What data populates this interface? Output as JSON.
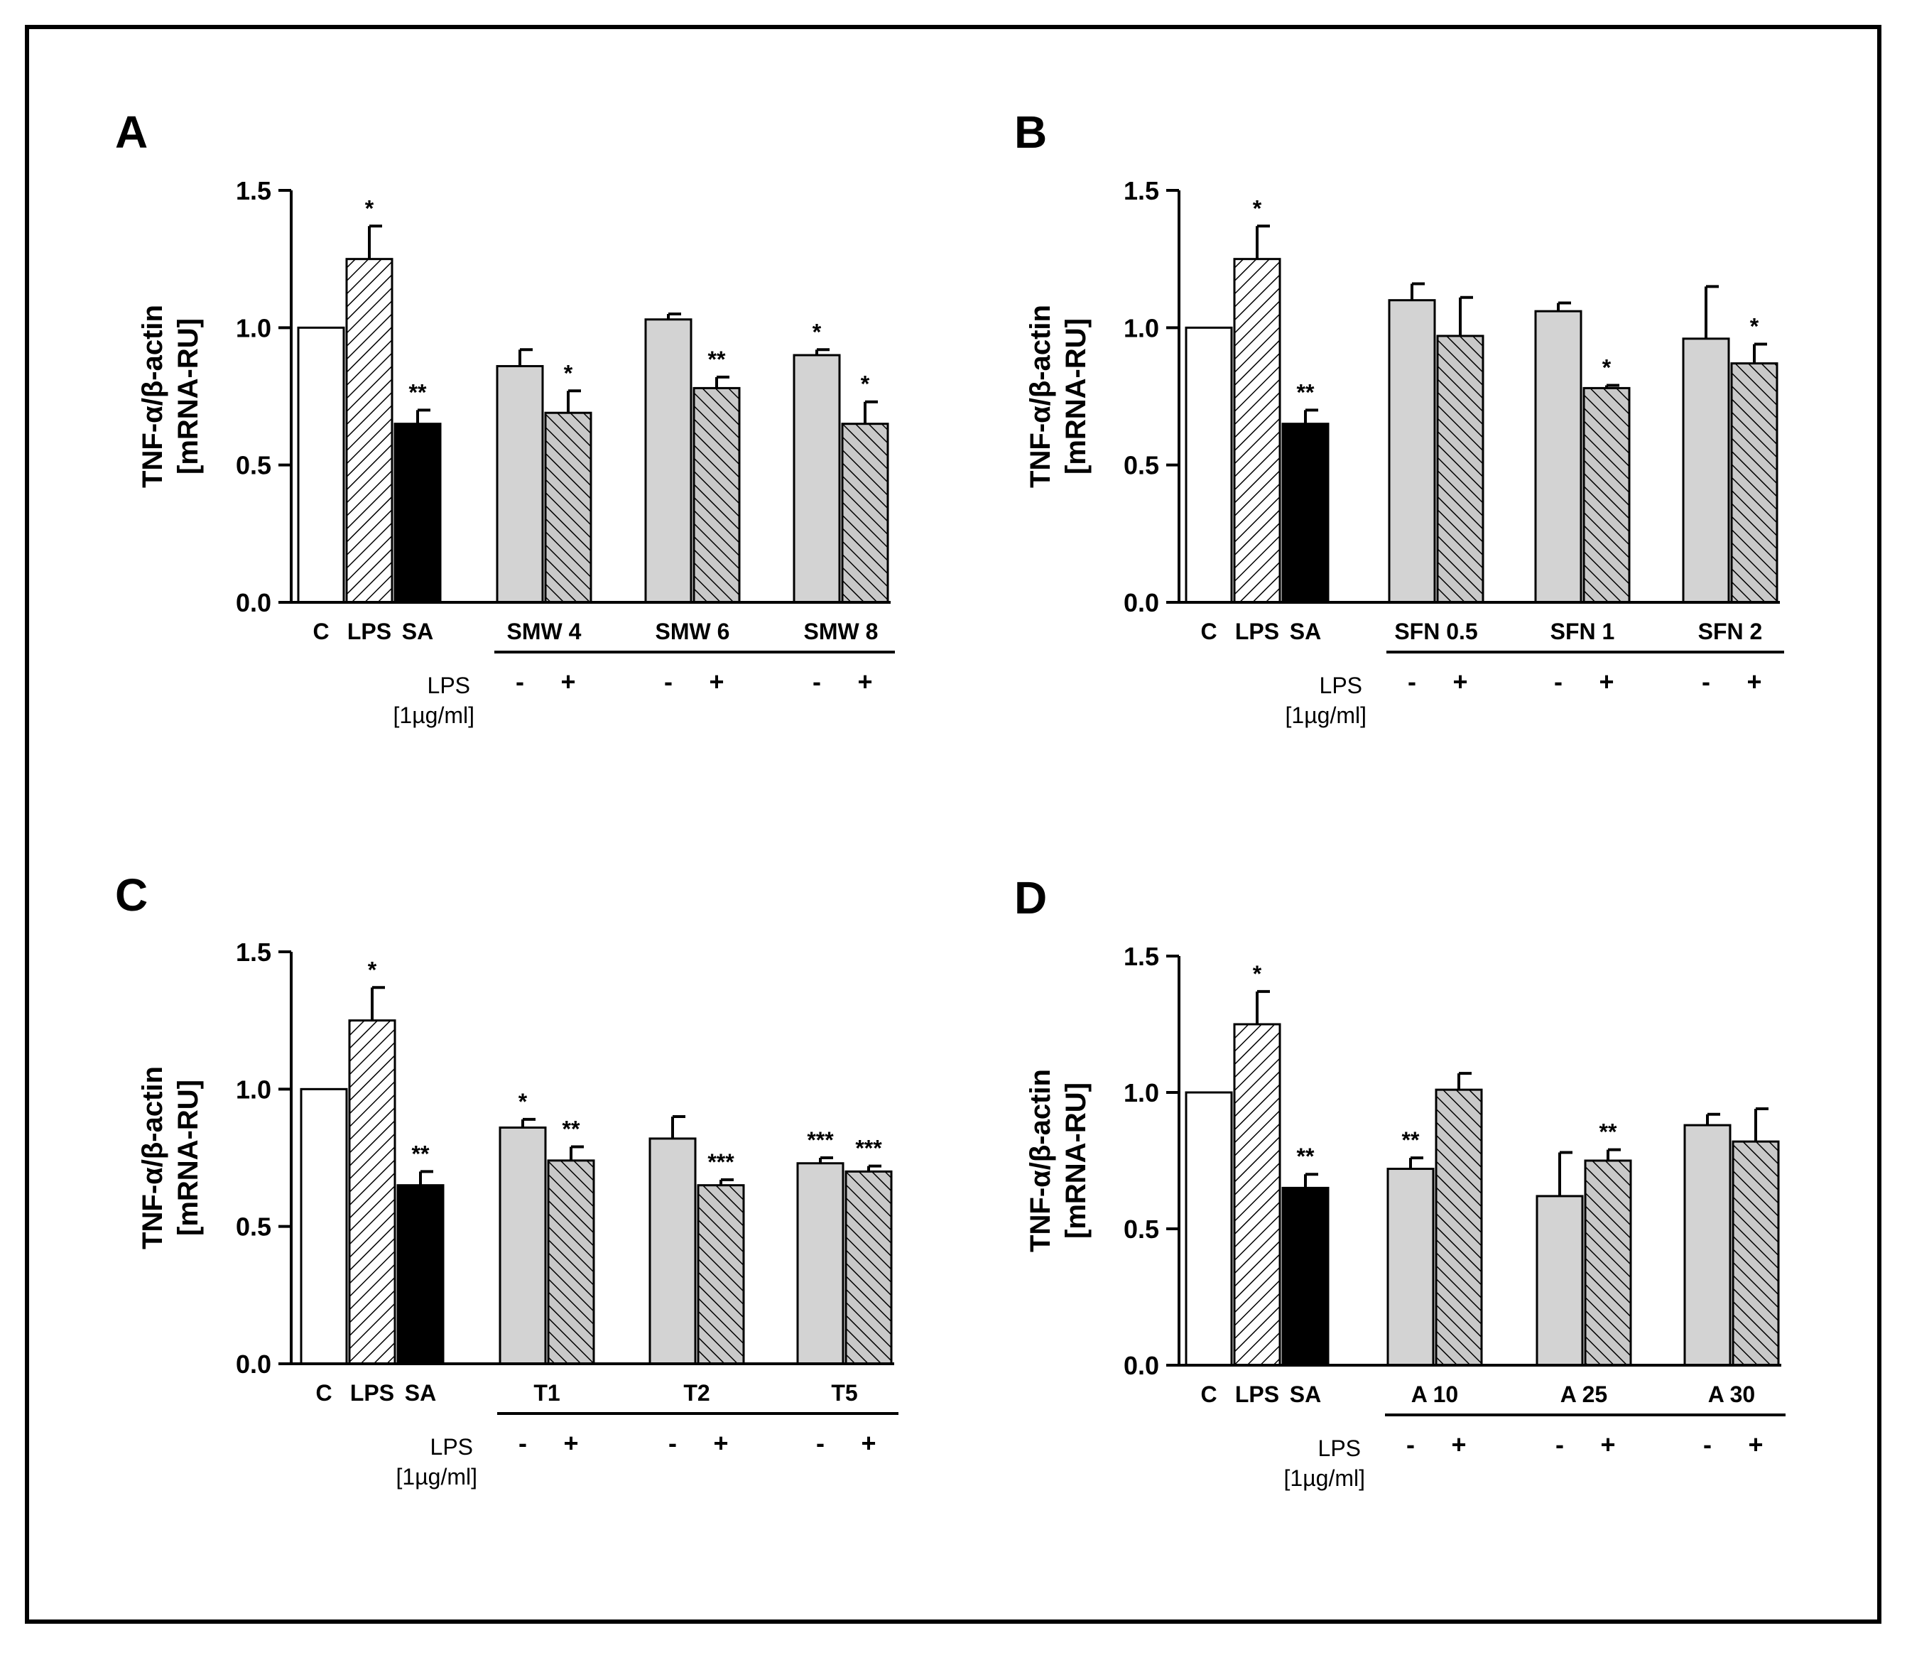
{
  "chart_data": [
    {
      "panel": "A",
      "type": "bar",
      "ylabel_line1": "TNF-α/β-actin",
      "ylabel_line2": "[mRNA-RU]",
      "ylim": [
        0,
        1.5
      ],
      "yticks": [
        "0.0",
        "0.5",
        "1.0",
        "1.5"
      ],
      "controls": [
        {
          "label": "C",
          "value": 1.0,
          "error": 0,
          "sig": "",
          "style": "white"
        },
        {
          "label": "LPS",
          "value": 1.25,
          "error": 0.12,
          "sig": "*",
          "style": "hatch"
        },
        {
          "label": "SA",
          "value": 0.65,
          "error": 0.05,
          "sig": "**",
          "style": "black"
        }
      ],
      "groups": [
        {
          "label": "SMW 4",
          "minus": {
            "value": 0.86,
            "error": 0.06,
            "sig": ""
          },
          "plus": {
            "value": 0.69,
            "error": 0.08,
            "sig": "*"
          }
        },
        {
          "label": "SMW 6",
          "minus": {
            "value": 1.03,
            "error": 0.02,
            "sig": ""
          },
          "plus": {
            "value": 0.78,
            "error": 0.04,
            "sig": "**"
          }
        },
        {
          "label": "SMW 8",
          "minus": {
            "value": 0.9,
            "error": 0.02,
            "sig": "*"
          },
          "plus": {
            "value": 0.65,
            "error": 0.08,
            "sig": "*"
          }
        }
      ],
      "lps_label": "LPS",
      "lps_unit": "[1µg/ml]",
      "minus_sign": "-",
      "plus_sign": "+"
    },
    {
      "panel": "B",
      "type": "bar",
      "ylabel_line1": "TNF-α/β-actin",
      "ylabel_line2": "[mRNA-RU]",
      "ylim": [
        0,
        1.5
      ],
      "yticks": [
        "0.0",
        "0.5",
        "1.0",
        "1.5"
      ],
      "controls": [
        {
          "label": "C",
          "value": 1.0,
          "error": 0,
          "sig": "",
          "style": "white"
        },
        {
          "label": "LPS",
          "value": 1.25,
          "error": 0.12,
          "sig": "*",
          "style": "hatch"
        },
        {
          "label": "SA",
          "value": 0.65,
          "error": 0.05,
          "sig": "**",
          "style": "black"
        }
      ],
      "groups": [
        {
          "label": "SFN 0.5",
          "minus": {
            "value": 1.1,
            "error": 0.06,
            "sig": ""
          },
          "plus": {
            "value": 0.97,
            "error": 0.14,
            "sig": ""
          }
        },
        {
          "label": "SFN 1",
          "minus": {
            "value": 1.06,
            "error": 0.03,
            "sig": ""
          },
          "plus": {
            "value": 0.78,
            "error": 0.01,
            "sig": "*"
          }
        },
        {
          "label": "SFN 2",
          "minus": {
            "value": 0.96,
            "error": 0.19,
            "sig": ""
          },
          "plus": {
            "value": 0.87,
            "error": 0.07,
            "sig": "*"
          }
        }
      ],
      "lps_label": "LPS",
      "lps_unit": "[1µg/ml]",
      "minus_sign": "-",
      "plus_sign": "+"
    },
    {
      "panel": "C",
      "type": "bar",
      "ylabel_line1": "TNF-α/β-actin",
      "ylabel_line2": "[mRNA-RU]",
      "ylim": [
        0,
        1.5
      ],
      "yticks": [
        "0.0",
        "0.5",
        "1.0",
        "1.5"
      ],
      "controls": [
        {
          "label": "C",
          "value": 1.0,
          "error": 0,
          "sig": "",
          "style": "white"
        },
        {
          "label": "LPS",
          "value": 1.25,
          "error": 0.12,
          "sig": "*",
          "style": "hatch"
        },
        {
          "label": "SA",
          "value": 0.65,
          "error": 0.05,
          "sig": "**",
          "style": "black"
        }
      ],
      "groups": [
        {
          "label": "T1",
          "minus": {
            "value": 0.86,
            "error": 0.03,
            "sig": "*"
          },
          "plus": {
            "value": 0.74,
            "error": 0.05,
            "sig": "**"
          }
        },
        {
          "label": "T2",
          "minus": {
            "value": 0.82,
            "error": 0.08,
            "sig": ""
          },
          "plus": {
            "value": 0.65,
            "error": 0.02,
            "sig": "***"
          }
        },
        {
          "label": "T5",
          "minus": {
            "value": 0.73,
            "error": 0.02,
            "sig": "***"
          },
          "plus": {
            "value": 0.7,
            "error": 0.02,
            "sig": "***"
          }
        }
      ],
      "lps_label": "LPS",
      "lps_unit": "[1µg/ml]",
      "minus_sign": "-",
      "plus_sign": "+"
    },
    {
      "panel": "D",
      "type": "bar",
      "ylabel_line1": "TNF-α/β-actin",
      "ylabel_line2": "[mRNA-RU]",
      "ylim": [
        0,
        1.5
      ],
      "yticks": [
        "0.0",
        "0.5",
        "1.0",
        "1.5"
      ],
      "controls": [
        {
          "label": "C",
          "value": 1.0,
          "error": 0,
          "sig": "",
          "style": "white"
        },
        {
          "label": "LPS",
          "value": 1.25,
          "error": 0.12,
          "sig": "*",
          "style": "hatch"
        },
        {
          "label": "SA",
          "value": 0.65,
          "error": 0.05,
          "sig": "**",
          "style": "black"
        }
      ],
      "groups": [
        {
          "label": "A 10",
          "minus": {
            "value": 0.72,
            "error": 0.04,
            "sig": "**"
          },
          "plus": {
            "value": 1.01,
            "error": 0.06,
            "sig": ""
          }
        },
        {
          "label": "A 25",
          "minus": {
            "value": 0.62,
            "error": 0.16,
            "sig": ""
          },
          "plus": {
            "value": 0.75,
            "error": 0.04,
            "sig": "**"
          }
        },
        {
          "label": "A 30",
          "minus": {
            "value": 0.88,
            "error": 0.04,
            "sig": ""
          },
          "plus": {
            "value": 0.82,
            "error": 0.12,
            "sig": ""
          }
        }
      ],
      "lps_label": "LPS",
      "lps_unit": "[1µg/ml]",
      "minus_sign": "-",
      "plus_sign": "+"
    }
  ]
}
